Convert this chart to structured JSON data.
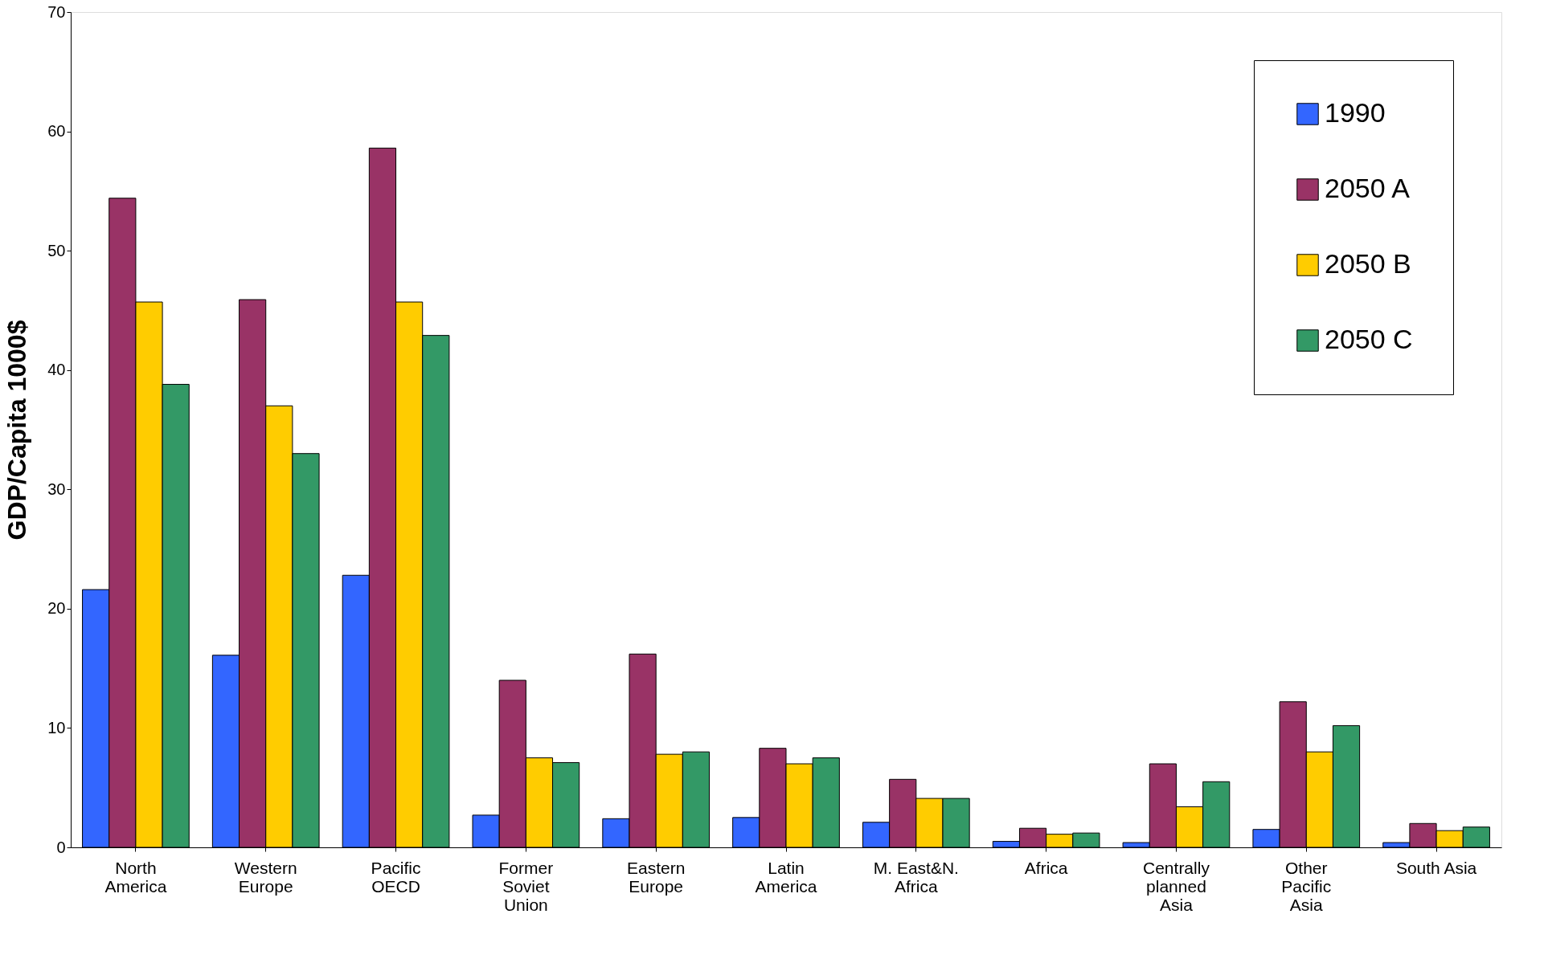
{
  "chart_data": {
    "type": "bar",
    "ylabel": "GDP/Capita 1000$",
    "categories": [
      "North\nAmerica",
      "Western\nEurope",
      "Pacific\nOECD",
      "Former\nSoviet\nUnion",
      "Eastern\nEurope",
      "Latin\nAmerica",
      "M. East&N.\nAfrica",
      "Africa",
      "Centrally\nplanned\nAsia",
      "Other\nPacific\nAsia",
      "South Asia"
    ],
    "series": [
      {
        "name": "1990",
        "color": "#3366ff",
        "values": [
          21.6,
          16.1,
          22.8,
          2.7,
          2.4,
          2.5,
          2.1,
          0.5,
          0.4,
          1.5,
          0.4
        ]
      },
      {
        "name": "2050 A",
        "color": "#993366",
        "values": [
          54.4,
          45.9,
          58.6,
          14.0,
          16.2,
          8.3,
          5.7,
          1.6,
          7.0,
          12.2,
          2.0
        ]
      },
      {
        "name": "2050 B",
        "color": "#ffcc00",
        "values": [
          45.7,
          37.0,
          45.7,
          7.5,
          7.8,
          7.0,
          4.1,
          1.1,
          3.4,
          8.0,
          1.4
        ]
      },
      {
        "name": "2050 C",
        "color": "#339966",
        "values": [
          38.8,
          33.0,
          42.9,
          7.1,
          8.0,
          7.5,
          4.1,
          1.2,
          5.5,
          10.2,
          1.7
        ]
      }
    ],
    "ylim": [
      0,
      70
    ],
    "yticks": [
      0,
      10,
      20,
      30,
      40,
      50,
      60,
      70
    ],
    "grid": false,
    "legend": "top right"
  }
}
